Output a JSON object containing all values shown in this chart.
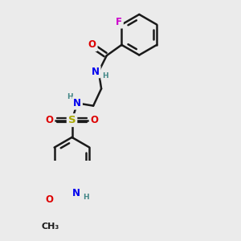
{
  "bg_color": "#ebebeb",
  "bond_color": "#1a1a1a",
  "bond_width": 1.8,
  "atom_colors": {
    "F": "#cc00cc",
    "O": "#dd0000",
    "N": "#0000ee",
    "S": "#aaaa00",
    "C": "#1a1a1a",
    "H": "#448888"
  },
  "font_size_atoms": 8.5,
  "font_size_h": 6.5
}
